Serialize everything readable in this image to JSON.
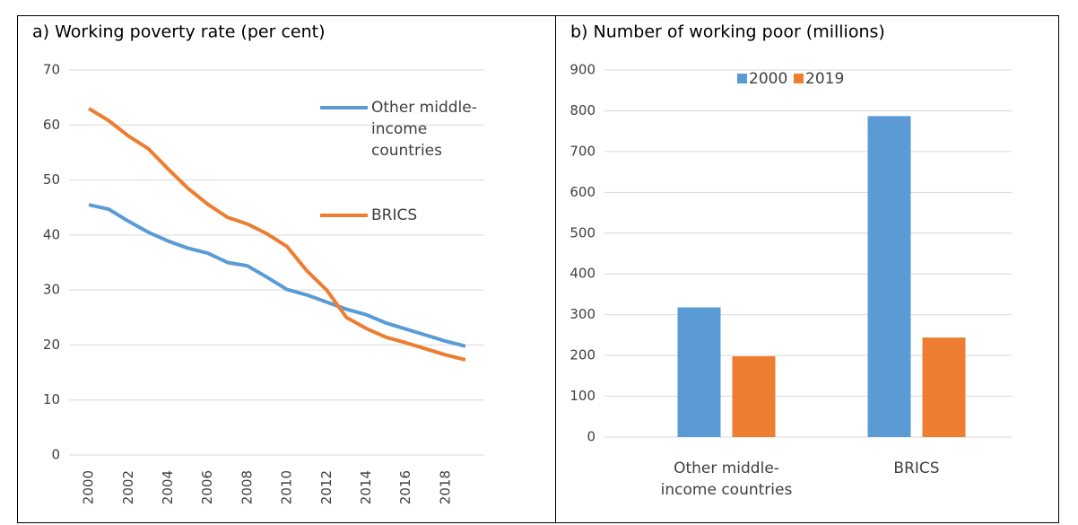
{
  "chart_data": [
    {
      "type": "line",
      "title": "a)  Working poverty rate (per cent)",
      "categories": [
        2000,
        null,
        2002,
        null,
        2004,
        null,
        2006,
        null,
        2008,
        null,
        2010,
        null,
        2012,
        null,
        2014,
        null,
        2016,
        null,
        2018,
        null
      ],
      "series": [
        {
          "name": "Other middle-income countries",
          "color": "#5b9bd5",
          "values": [
            45.5,
            44.7,
            42.5,
            40.5,
            38.9,
            37.6,
            36.7,
            35,
            34.4,
            32.3,
            30.1,
            29.1,
            27.8,
            26.5,
            25.5,
            24,
            22.9,
            21.8,
            20.7,
            19.8
          ]
        },
        {
          "name": "BRICS",
          "color": "#ed7d31",
          "values": [
            63,
            60.8,
            58,
            55.7,
            52,
            48.5,
            45.6,
            43.2,
            42,
            40.2,
            37.9,
            33.5,
            30,
            25,
            23,
            21.4,
            20.4,
            19.3,
            18.2,
            17.3
          ]
        }
      ],
      "ylim": [
        0,
        70
      ],
      "yticks": [
        0,
        10,
        20,
        30,
        40,
        50,
        60,
        70
      ],
      "grid": true,
      "legend": "right"
    },
    {
      "type": "bar",
      "title": "b)  Number of working poor (millions)",
      "categories": [
        "Other middle-income countries",
        "BRICS"
      ],
      "series": [
        {
          "name": "2000",
          "color": "#5b9bd5",
          "values": [
            318,
            787
          ]
        },
        {
          "name": "2019",
          "color": "#ed7d31",
          "values": [
            198,
            244
          ]
        }
      ],
      "ylim": [
        0,
        900
      ],
      "yticks": [
        0,
        100,
        200,
        300,
        400,
        500,
        600,
        700,
        800,
        900
      ],
      "grid": true,
      "legend": "top"
    }
  ]
}
